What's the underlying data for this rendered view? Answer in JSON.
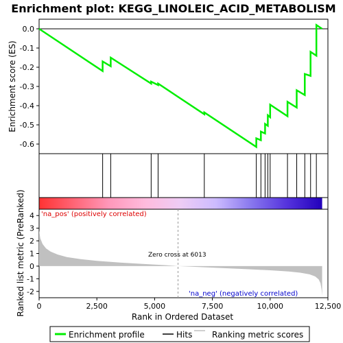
{
  "chart_data": {
    "type": "line",
    "title": "Enrichment plot: KEGG_LINOLEIC_ACID_METABOLISM",
    "xlabel": "Rank in Ordered Dataset",
    "ylabel_top": "Enrichment score (ES)",
    "ylabel_bottom": "Ranked list metric (PreRanked)",
    "xlim": [
      0,
      12500
    ],
    "x_ticks": [
      0,
      2500,
      5000,
      7500,
      10000,
      12500
    ],
    "x_tick_labels": [
      "0",
      "2,500",
      "5,000",
      "7,500",
      "10,000",
      "12,500"
    ],
    "es_ylim": [
      -0.65,
      0.05
    ],
    "es_ticks": [
      0.0,
      -0.1,
      -0.2,
      -0.3,
      -0.4,
      -0.5,
      -0.6
    ],
    "es_tick_labels": [
      "0.0",
      "-0.1",
      "-0.2",
      "-0.3",
      "-0.4",
      "-0.5",
      "-0.6"
    ],
    "metric_ylim": [
      -2.5,
      4.5
    ],
    "metric_ticks": [
      4,
      3,
      2,
      1,
      0,
      -1,
      -2
    ],
    "metric_tick_labels": [
      "4",
      "3",
      "2",
      "1",
      "0",
      "-1",
      "-2"
    ],
    "n_genes": 12250,
    "zero_cross": 6013,
    "hits": [
      2750,
      3100,
      4850,
      5150,
      7150,
      9400,
      9600,
      9780,
      9900,
      10000,
      10750,
      11150,
      11500,
      11750,
      12000
    ],
    "es_curve": {
      "x": [
        0,
        2750,
        2750,
        3100,
        3100,
        4850,
        4850,
        5150,
        5150,
        7150,
        7150,
        9400,
        9400,
        9600,
        9600,
        9780,
        9780,
        9900,
        9900,
        10000,
        10000,
        10750,
        10750,
        11150,
        11150,
        11500,
        11500,
        11750,
        11750,
        12000,
        12000,
        12250
      ],
      "y": [
        0.0,
        -0.22,
        -0.17,
        -0.195,
        -0.15,
        -0.285,
        -0.275,
        -0.293,
        -0.285,
        -0.445,
        -0.435,
        -0.615,
        -0.57,
        -0.58,
        -0.535,
        -0.545,
        -0.495,
        -0.505,
        -0.45,
        -0.46,
        -0.395,
        -0.455,
        -0.38,
        -0.41,
        -0.32,
        -0.345,
        -0.235,
        -0.245,
        -0.12,
        -0.14,
        0.02,
        0.0
      ]
    },
    "metric_curve": {
      "x": [
        0,
        50,
        150,
        300,
        500,
        800,
        1200,
        1800,
        2500,
        3500,
        4500,
        5500,
        6013,
        7000,
        8000,
        9000,
        10000,
        10800,
        11300,
        11700,
        11950,
        12100,
        12180,
        12230,
        12250
      ],
      "y": [
        2.85,
        2.2,
        1.75,
        1.4,
        1.15,
        0.92,
        0.72,
        0.55,
        0.42,
        0.28,
        0.17,
        0.07,
        0.0,
        -0.08,
        -0.16,
        -0.24,
        -0.33,
        -0.42,
        -0.52,
        -0.65,
        -0.82,
        -1.05,
        -1.35,
        -1.9,
        -2.35
      ]
    },
    "annotations": {
      "pos": "'na_pos' (positively correlated)",
      "neg": "'na_neg' (negatively correlated)",
      "zero": "Zero cross at 6013"
    },
    "legend": {
      "items": [
        "Enrichment profile",
        "Hits",
        "Ranking metric scores"
      ],
      "placement": "bottom"
    },
    "colors": {
      "es_line": "#00ee00",
      "hit": "#000000",
      "metric_fill": "#c0c0c0",
      "pos_text": "#dd0000",
      "neg_text": "#0000cc",
      "bar_gradient": [
        "#ff3333",
        "#ff6677",
        "#ff99bb",
        "#ffbbdd",
        "#eeccf5",
        "#ccbbff",
        "#8877ee",
        "#5533dd",
        "#2200bb"
      ]
    }
  }
}
